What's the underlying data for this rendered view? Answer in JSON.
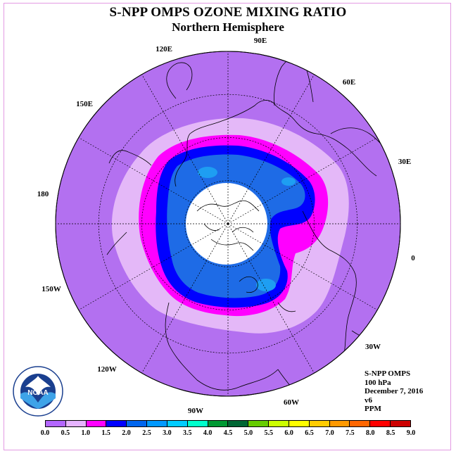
{
  "title": "S-NPP OMPS OZONE MIXING RATIO",
  "subtitle": "Northern Hemisphere",
  "longitude_labels": [
    "90E",
    "60E",
    "30E",
    "0",
    "30W",
    "60W",
    "90W",
    "120W",
    "150W",
    "180",
    "150E",
    "120E"
  ],
  "info": {
    "line1": "S-NPP OMPS",
    "line2": "100 hPa",
    "line3": "December 7, 2016",
    "line4": "v6",
    "line5": "PPM"
  },
  "logo": {
    "name": "NOAA"
  },
  "colorbar": {
    "ticks": [
      "0.0",
      "0.5",
      "1.0",
      "1.5",
      "2.0",
      "2.5",
      "3.0",
      "3.5",
      "4.0",
      "4.5",
      "5.0",
      "5.5",
      "6.0",
      "6.5",
      "7.0",
      "7.5",
      "8.0",
      "8.5",
      "9.0"
    ],
    "colors": [
      "#b366ff",
      "#e6b3ff",
      "#ff00ff",
      "#0000ff",
      "#0066ee",
      "#0099ff",
      "#00ccff",
      "#00ffcc",
      "#009933",
      "#006633",
      "#66cc00",
      "#ccff00",
      "#ffff00",
      "#ffcc00",
      "#ff9900",
      "#ff6600",
      "#ff0000",
      "#cc0000",
      "#8b4513"
    ]
  },
  "map_colors": {
    "background_disc": "#b370f0",
    "band_05": "#e4b8f8",
    "band_10": "#ff00ff",
    "band_15": "#0000ff",
    "band_20": "#1e6be6",
    "band_25": "#1e9ef2",
    "polar_cap": "#ffffff"
  }
}
